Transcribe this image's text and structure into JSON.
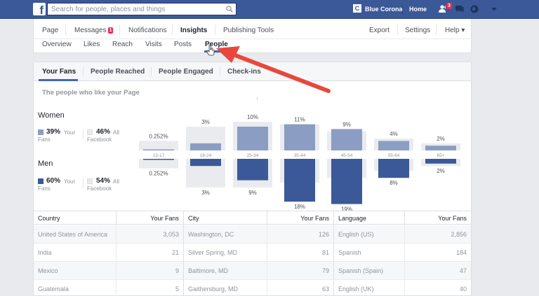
{
  "topbar": {
    "logo": "f",
    "search_placeholder": "Search for people, places and things",
    "profile_initial": "C",
    "profile_name": "Blue Corona",
    "home": "Home",
    "friend_requests": "3",
    "icons": [
      "search-icon",
      "friends-icon",
      "messages-icon",
      "globe-icon",
      "caret-down-icon"
    ],
    "colors": {
      "bar": "#3b5998",
      "badge": "#f02849"
    }
  },
  "page_nav": {
    "items": [
      {
        "label": "Page"
      },
      {
        "label": "Messages",
        "badge": "1"
      },
      {
        "label": "Notifications"
      },
      {
        "label": "Insights",
        "active": true
      },
      {
        "label": "Publishing Tools"
      }
    ],
    "right_items": [
      {
        "label": "Export"
      },
      {
        "label": "Settings"
      },
      {
        "label": "Help ▾"
      }
    ]
  },
  "insights_nav": {
    "items": [
      {
        "label": "Overview"
      },
      {
        "label": "Likes"
      },
      {
        "label": "Reach"
      },
      {
        "label": "Visits"
      },
      {
        "label": "Posts"
      },
      {
        "label": "People",
        "active": true
      }
    ]
  },
  "subtabs": [
    {
      "label": "Your Fans",
      "active": true
    },
    {
      "label": "People Reached"
    },
    {
      "label": "People Engaged"
    },
    {
      "label": "Check-ins"
    }
  ],
  "section_heading": "The people who like your Page",
  "legend": {
    "women": {
      "title": "Women",
      "fans_pct": "39%",
      "fans_label_1": "Your",
      "fans_label_2": "Fans",
      "fb_pct": "46%",
      "fb_label_1": "All",
      "fb_label_2": "Facebook"
    },
    "men": {
      "title": "Men",
      "fans_pct": "60%",
      "fans_label_1": "Your",
      "fans_label_2": "Fans",
      "fb_pct": "54%",
      "fb_label_1": "All",
      "fb_label_2": "Facebook"
    }
  },
  "chart_data": {
    "type": "bar",
    "categories": [
      "13-17",
      "18-24",
      "25-34",
      "35-44",
      "45-54",
      "55-64",
      "65+"
    ],
    "series": [
      {
        "name": "Women",
        "values": [
          0.252,
          3,
          10,
          11,
          9,
          4,
          2
        ],
        "labels": [
          "0.252%",
          "3%",
          "10%",
          "11%",
          "9%",
          "4%",
          "2%"
        ]
      },
      {
        "name": "Men",
        "values": [
          0.252,
          3,
          9,
          18,
          19,
          8,
          2
        ],
        "labels": [
          "0.252%",
          "3%",
          "9%",
          "18%",
          "19%",
          "8%",
          "2%"
        ]
      }
    ],
    "facebook_women": [
      4,
      10,
      12,
      11,
      8,
      5,
      3
    ],
    "facebook_men": [
      4,
      12,
      12,
      10,
      8,
      5,
      3
    ],
    "colors": {
      "women": "#8b9dc3",
      "men": "#3b5998",
      "facebook": "#e9ebee"
    }
  },
  "tables": [
    {
      "header": "Country",
      "value_header": "Your Fans",
      "rows": [
        {
          "name": "United States of America",
          "value": "3,053"
        },
        {
          "name": "India",
          "value": "21"
        },
        {
          "name": "Mexico",
          "value": "9"
        },
        {
          "name": "Guatemala",
          "value": "5"
        }
      ]
    },
    {
      "header": "City",
      "value_header": "Your Fans",
      "rows": [
        {
          "name": "Washington, DC",
          "value": "126"
        },
        {
          "name": "Silver Spring, MD",
          "value": "81"
        },
        {
          "name": "Baltimore, MD",
          "value": "79"
        },
        {
          "name": "Gaithersburg, MD",
          "value": "63"
        }
      ]
    },
    {
      "header": "Language",
      "value_header": "Your Fans",
      "rows": [
        {
          "name": "English (US)",
          "value": "2,856"
        },
        {
          "name": "Spanish",
          "value": "184"
        },
        {
          "name": "Spanish (Spain)",
          "value": "47"
        },
        {
          "name": "English (UK)",
          "value": "40"
        }
      ]
    }
  ]
}
